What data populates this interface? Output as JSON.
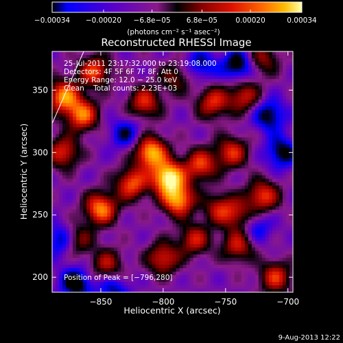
{
  "chart_data": {
    "type": "heatmap",
    "title": "Reconstructed RHESSI Image",
    "xlabel": "Heliocentric X (arcsec)",
    "ylabel": "Heliocentric Y (arcsec)",
    "xlim": [
      -889,
      -696
    ],
    "ylim": [
      188,
      381
    ],
    "x_ticks": [
      -850,
      -800,
      -750,
      -700
    ],
    "x_tick_labels": [
      "−850",
      "−800",
      "−750",
      "−700"
    ],
    "y_ticks": [
      200,
      250,
      300,
      350
    ],
    "y_tick_labels": [
      "200",
      "250",
      "300",
      "350"
    ],
    "colorbar": {
      "ticks": [
        -0.00034,
        -0.0002,
        -6.8e-05,
        6.8e-05,
        0.0002,
        0.00034
      ],
      "tick_labels": [
        "−0.00034",
        "−0.00020",
        "−6.8e−05",
        "6.8e−05",
        "0.00020",
        "0.00034"
      ],
      "range": [
        -0.00034,
        0.00034
      ],
      "unit_text": "(photons cm⁻² s⁻¹ asec⁻²)",
      "colors": [
        "#000000",
        "#0000ff",
        "#5a00c8",
        "#8a1a8a",
        "#000000",
        "#880000",
        "#dd1100",
        "#ff6600",
        "#ffbb00",
        "#ffffaa"
      ]
    },
    "annotations": {
      "time_range": "25-Jul-2011 23:17:32.000 to 23:19:08.000",
      "detectors": "Detectors: 4F 5F 6F 7F 8F, Att 0",
      "energy_range": "Energy Range: 12.0 − 25.0 keV",
      "method_counts": "Clean    Total counts: 2.23E+03",
      "peak_position": "Position of Peak = [−796,280]",
      "timestamp": "9-Aug-2013 12:22"
    },
    "peak": {
      "x": -796,
      "y": 280
    },
    "hotspots": [
      {
        "x": -796,
        "y": 280,
        "amp": 1.0
      },
      {
        "x": -810,
        "y": 300,
        "amp": 0.85
      },
      {
        "x": -788,
        "y": 262,
        "amp": 0.8
      },
      {
        "x": -825,
        "y": 275,
        "amp": 0.65
      },
      {
        "x": -770,
        "y": 290,
        "amp": 0.6
      },
      {
        "x": -880,
        "y": 345,
        "amp": 0.75
      },
      {
        "x": -865,
        "y": 330,
        "amp": 0.7
      },
      {
        "x": -880,
        "y": 300,
        "amp": 0.55
      },
      {
        "x": -855,
        "y": 365,
        "amp": 0.6
      },
      {
        "x": -815,
        "y": 340,
        "amp": 0.55
      },
      {
        "x": -760,
        "y": 340,
        "amp": 0.55
      },
      {
        "x": -745,
        "y": 300,
        "amp": 0.55
      },
      {
        "x": -720,
        "y": 265,
        "amp": 0.6
      },
      {
        "x": -735,
        "y": 345,
        "amp": 0.5
      },
      {
        "x": -850,
        "y": 255,
        "amp": 0.75
      },
      {
        "x": -870,
        "y": 230,
        "amp": 0.5
      },
      {
        "x": -800,
        "y": 215,
        "amp": 0.55
      },
      {
        "x": -775,
        "y": 230,
        "amp": 0.5
      },
      {
        "x": -740,
        "y": 225,
        "amp": 0.5
      },
      {
        "x": -710,
        "y": 200,
        "amp": 0.55
      },
      {
        "x": -845,
        "y": 210,
        "amp": 0.45
      },
      {
        "x": -755,
        "y": 255,
        "amp": 0.45
      },
      {
        "x": -740,
        "y": 250,
        "amp": 0.4
      },
      {
        "x": -790,
        "y": 360,
        "amp": 0.35
      },
      {
        "x": -720,
        "y": 375,
        "amp": 0.4
      }
    ],
    "coldspots": [
      {
        "x": -880,
        "y": 230,
        "amp": -0.5
      },
      {
        "x": -870,
        "y": 195,
        "amp": -0.5
      },
      {
        "x": -740,
        "y": 370,
        "amp": -0.5
      },
      {
        "x": -715,
        "y": 330,
        "amp": -0.45
      },
      {
        "x": -705,
        "y": 300,
        "amp": -0.45
      },
      {
        "x": -830,
        "y": 315,
        "amp": -0.35
      },
      {
        "x": -770,
        "y": 370,
        "amp": -0.35
      },
      {
        "x": -840,
        "y": 190,
        "amp": -0.35
      },
      {
        "x": -725,
        "y": 240,
        "amp": -0.3
      }
    ]
  }
}
